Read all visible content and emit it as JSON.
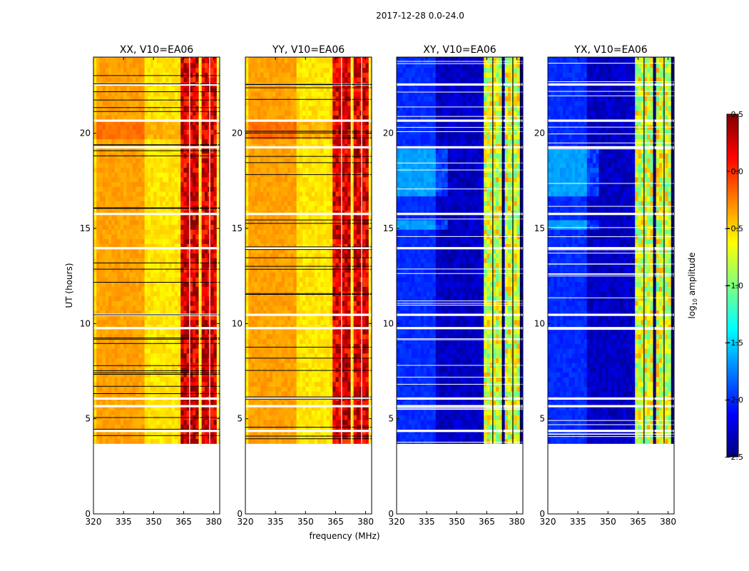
{
  "figure_title": "2017-12-28 0.0-24.0",
  "colors": {
    "jet": [
      "#00007f",
      "#0000ff",
      "#007fff",
      "#00ffff",
      "#7fff7f",
      "#ffff00",
      "#ff7f00",
      "#ff0000",
      "#7f0000"
    ],
    "gap": "#ffffff",
    "flag": "#000000"
  },
  "chart_data": [
    {
      "type": "heatmap",
      "title": "XX, V10=EA06",
      "xlabel": "",
      "ylabel": "UT (hours)",
      "xlim": [
        320,
        383
      ],
      "ylim": [
        0,
        24
      ],
      "xticks": [
        320,
        335,
        350,
        365,
        380
      ],
      "yticks": [
        0,
        5,
        10,
        15,
        20
      ],
      "data_start_hour": 3.7,
      "data_end_hour": 24,
      "base_log10_amplitude": -0.55,
      "warm_band_mhz": [
        322,
        345
      ],
      "warm_band_log10_amplitude": -0.35,
      "active_channels_mhz": [
        [
          364,
          368
        ],
        [
          368.5,
          373
        ],
        [
          373.5,
          378
        ],
        [
          378.5,
          382
        ]
      ],
      "active_log10_amplitude": 0.1,
      "gap_hours": [
        4.3,
        5.6,
        6.0,
        9.7,
        10.4,
        13.9,
        15.7,
        19.2,
        20.6,
        22.5
      ]
    },
    {
      "type": "heatmap",
      "title": "YY, V10=EA06",
      "xlabel": "frequency (MHz)",
      "ylabel": "",
      "xlim": [
        320,
        383
      ],
      "ylim": [
        0,
        24
      ],
      "xticks": [
        320,
        335,
        350,
        365,
        380
      ],
      "yticks": [
        0,
        5,
        10,
        15,
        20
      ],
      "data_start_hour": 3.7,
      "data_end_hour": 24,
      "base_log10_amplitude": -0.55,
      "warm_band_mhz": [
        322,
        345
      ],
      "warm_band_log10_amplitude": -0.35,
      "active_channels_mhz": [
        [
          364,
          368
        ],
        [
          368.5,
          373
        ],
        [
          373.5,
          378
        ],
        [
          378.5,
          382
        ]
      ],
      "active_log10_amplitude": 0.1,
      "gap_hours": [
        4.3,
        5.6,
        6.0,
        9.7,
        10.4,
        13.9,
        15.7,
        19.2,
        20.6,
        22.5
      ]
    },
    {
      "type": "heatmap",
      "title": "XY, V10=EA06",
      "xlabel": "",
      "ylabel": "",
      "xlim": [
        320,
        383
      ],
      "ylim": [
        0,
        24
      ],
      "xticks": [
        320,
        335,
        350,
        365,
        380
      ],
      "yticks": [
        0,
        5,
        10,
        15,
        20
      ],
      "data_start_hour": 3.7,
      "data_end_hour": 24,
      "base_log10_amplitude": -2.3,
      "warm_band_mhz": [
        320,
        340
      ],
      "warm_band_log10_amplitude": -2.0,
      "active_channels_mhz": [
        [
          364,
          368
        ],
        [
          368.5,
          373
        ],
        [
          373.5,
          378
        ],
        [
          378.5,
          382
        ]
      ],
      "active_log10_amplitude": -0.9,
      "gap_hours": [
        4.3,
        5.6,
        6.0,
        9.7,
        10.4,
        13.9,
        15.7,
        19.2,
        20.6,
        22.5
      ]
    },
    {
      "type": "heatmap",
      "title": "YX, V10=EA06",
      "xlabel": "",
      "ylabel": "",
      "xlim": [
        320,
        383
      ],
      "ylim": [
        0,
        24
      ],
      "xticks": [
        320,
        335,
        350,
        365,
        380
      ],
      "yticks": [
        0,
        5,
        10,
        15,
        20
      ],
      "data_start_hour": 3.7,
      "data_end_hour": 24,
      "base_log10_amplitude": -2.3,
      "warm_band_mhz": [
        320,
        340
      ],
      "warm_band_log10_amplitude": -2.0,
      "active_channels_mhz": [
        [
          364,
          368
        ],
        [
          368.5,
          373
        ],
        [
          373.5,
          378
        ],
        [
          378.5,
          382
        ]
      ],
      "active_log10_amplitude": -0.9,
      "gap_hours": [
        4.3,
        5.6,
        6.0,
        9.7,
        10.4,
        13.9,
        15.7,
        19.2,
        20.6,
        22.5
      ]
    }
  ],
  "colorbar": {
    "label": "log",
    "label_sub": "10",
    "label_suffix": " amplitude",
    "min": -2.5,
    "max": 0.5,
    "ticks": [
      {
        "value": 0.5,
        "label": "0.5"
      },
      {
        "value": 0.0,
        "label": "0.0"
      },
      {
        "value": -0.5,
        "label": "−0.5"
      },
      {
        "value": -1.0,
        "label": "−1.0"
      },
      {
        "value": -1.5,
        "label": "−1.5"
      },
      {
        "value": -2.0,
        "label": "−2.0"
      },
      {
        "value": -2.5,
        "label": "−2.5"
      }
    ]
  }
}
